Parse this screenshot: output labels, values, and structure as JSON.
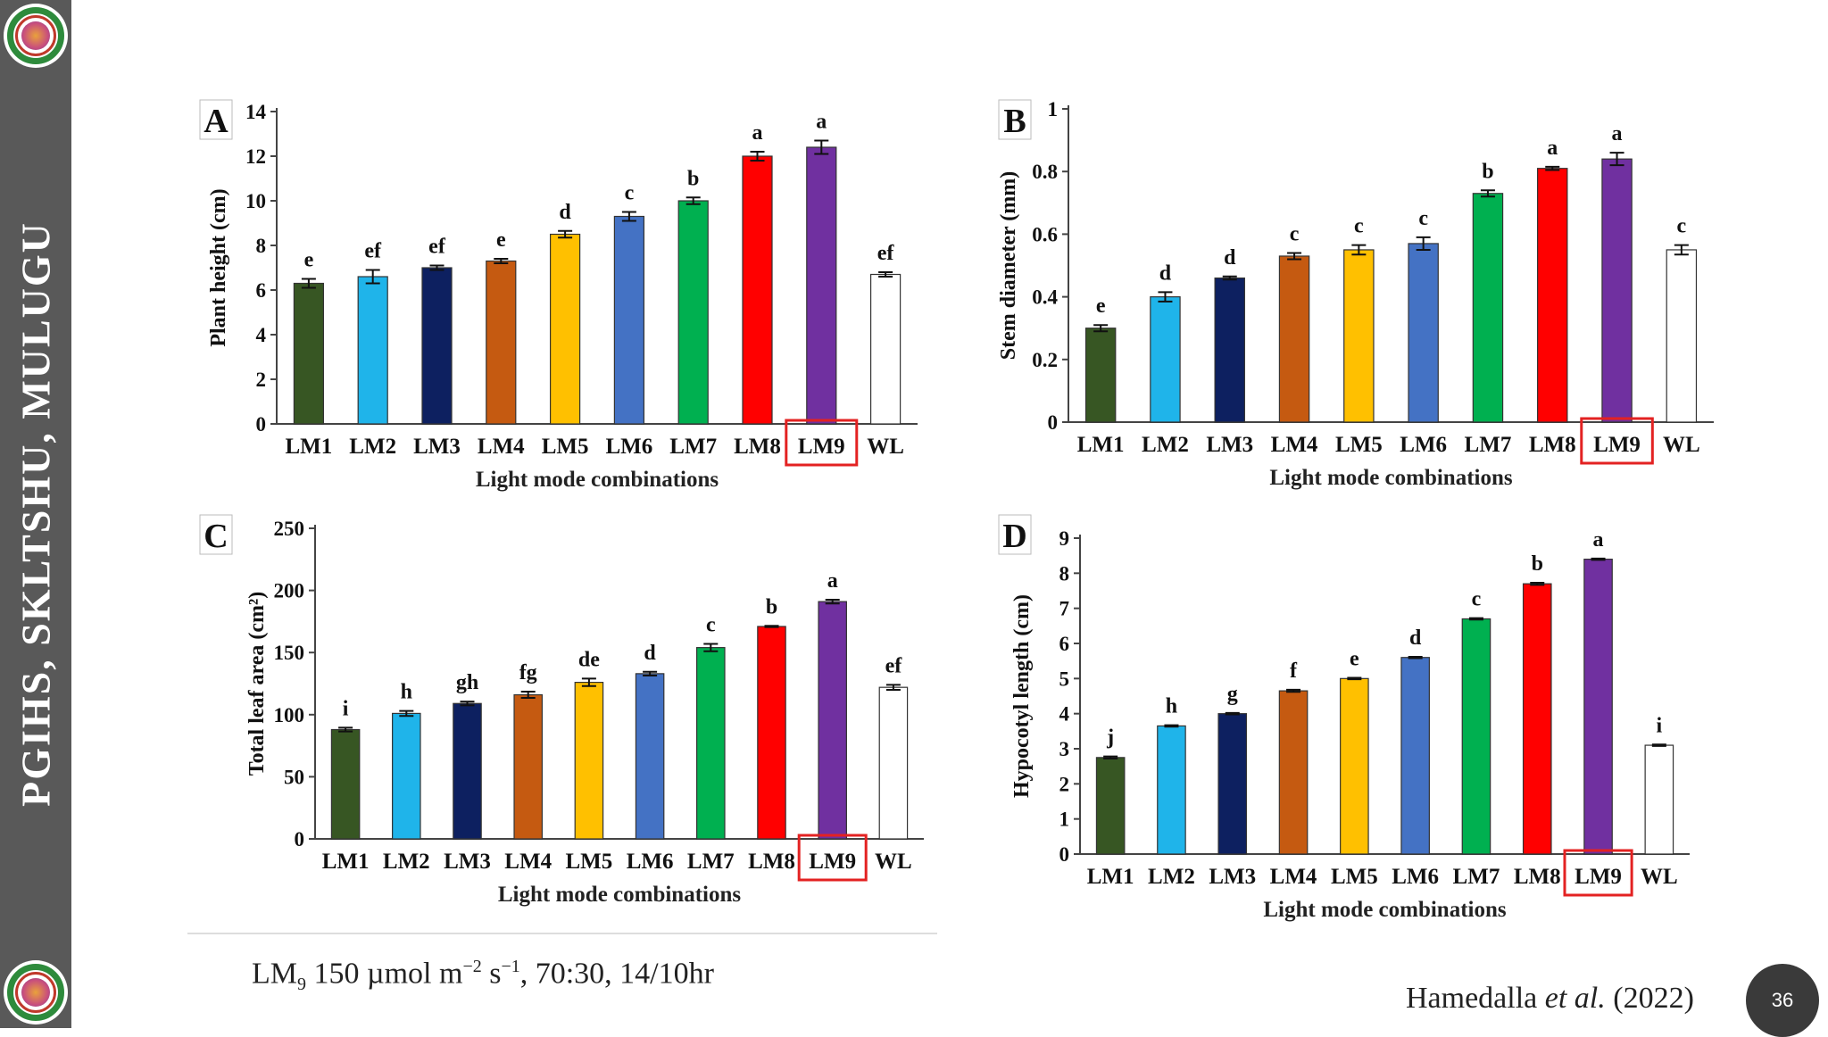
{
  "sidebar": {
    "title": "PGIHS, SKLTSHU, MULUGU",
    "logo_icon": "university-seal-icon"
  },
  "footnote": {
    "lm": "LM",
    "sub": "9",
    "text1": " 150 µmol m",
    "sup1": "−2",
    "text2": " s",
    "sup2": "−1",
    "text3": ", 70:30, 14/10hr"
  },
  "citation": {
    "author": "Hamedalla ",
    "etal": "et al.",
    "year": " (2022)"
  },
  "page_number": "36",
  "colors": [
    "#375623",
    "#1fb4ea",
    "#0d2060",
    "#c55a11",
    "#ffc000",
    "#4472c4",
    "#00b050",
    "#ff0000",
    "#7030a0",
    "#ffffff"
  ],
  "highlight_color": "#e32222",
  "highlight_category": "LM9",
  "chart_data": [
    {
      "id": "A",
      "type": "bar",
      "panel_label": "A",
      "categories": [
        "LM1",
        "LM2",
        "LM3",
        "LM4",
        "LM5",
        "LM6",
        "LM7",
        "LM8",
        "LM9",
        "WL"
      ],
      "values": [
        6.3,
        6.6,
        7.0,
        7.3,
        8.5,
        9.3,
        10.0,
        12.0,
        12.4,
        6.7
      ],
      "errors": [
        0.2,
        0.3,
        0.1,
        0.1,
        0.15,
        0.2,
        0.15,
        0.2,
        0.3,
        0.1
      ],
      "letters": [
        "e",
        "ef",
        "ef",
        "e",
        "d",
        "c",
        "b",
        "a",
        "a",
        "ef"
      ],
      "ylim": [
        0,
        14
      ],
      "yticks": [
        "0",
        "2",
        "4",
        "6",
        "8",
        "10",
        "12",
        "14"
      ],
      "xlabel": "Light mode combinations",
      "ylabel": "Plant height (cm)"
    },
    {
      "id": "B",
      "type": "bar",
      "panel_label": "B",
      "categories": [
        "LM1",
        "LM2",
        "LM3",
        "LM4",
        "LM5",
        "LM6",
        "LM7",
        "LM8",
        "LM9",
        "WL"
      ],
      "values": [
        0.3,
        0.4,
        0.46,
        0.53,
        0.55,
        0.57,
        0.73,
        0.81,
        0.84,
        0.55
      ],
      "errors": [
        0.01,
        0.015,
        0.005,
        0.01,
        0.015,
        0.02,
        0.01,
        0.005,
        0.02,
        0.015
      ],
      "letters": [
        "e",
        "d",
        "d",
        "c",
        "c",
        "c",
        "b",
        "a",
        "a",
        "c"
      ],
      "ylim": [
        0,
        1
      ],
      "yticks": [
        "0",
        "0.2",
        "0.4",
        "0.6",
        "0.8",
        "1"
      ],
      "xlabel": "Light mode combinations",
      "ylabel": "Stem diameter (mm)"
    },
    {
      "id": "C",
      "type": "bar",
      "panel_label": "C",
      "categories": [
        "LM1",
        "LM2",
        "LM3",
        "LM4",
        "LM5",
        "LM6",
        "LM7",
        "LM8",
        "LM9",
        "WL"
      ],
      "values": [
        88,
        101,
        109,
        116,
        126,
        133,
        154,
        171,
        191,
        122
      ],
      "errors": [
        1.5,
        2,
        1.5,
        2.5,
        3,
        1.5,
        3,
        0.5,
        1.5,
        2
      ],
      "letters": [
        "i",
        "h",
        "gh",
        "fg",
        "de",
        "d",
        "c",
        "b",
        "a",
        "ef"
      ],
      "ylim": [
        0,
        250
      ],
      "yticks": [
        "0",
        "50",
        "100",
        "150",
        "200",
        "250"
      ],
      "xlabel": "Light mode combinations",
      "ylabel": "Total leaf area (cm²)"
    },
    {
      "id": "D",
      "type": "bar",
      "panel_label": "D",
      "categories": [
        "LM1",
        "LM2",
        "LM3",
        "LM4",
        "LM5",
        "LM6",
        "LM7",
        "LM8",
        "LM9",
        "WL"
      ],
      "values": [
        2.75,
        3.65,
        4.0,
        4.65,
        5.0,
        5.6,
        6.7,
        7.7,
        8.4,
        3.1
      ],
      "errors": [
        0.03,
        0.02,
        0.02,
        0.03,
        0.02,
        0.02,
        0.02,
        0.03,
        0.02,
        0.02
      ],
      "letters": [
        "j",
        "h",
        "g",
        "f",
        "e",
        "d",
        "c",
        "b",
        "a",
        "i"
      ],
      "ylim": [
        0,
        9
      ],
      "yticks": [
        "0",
        "1",
        "2",
        "3",
        "4",
        "5",
        "6",
        "7",
        "8",
        "9"
      ],
      "xlabel": "Light mode combinations",
      "ylabel": "Hypocotyl  length (cm)"
    }
  ]
}
